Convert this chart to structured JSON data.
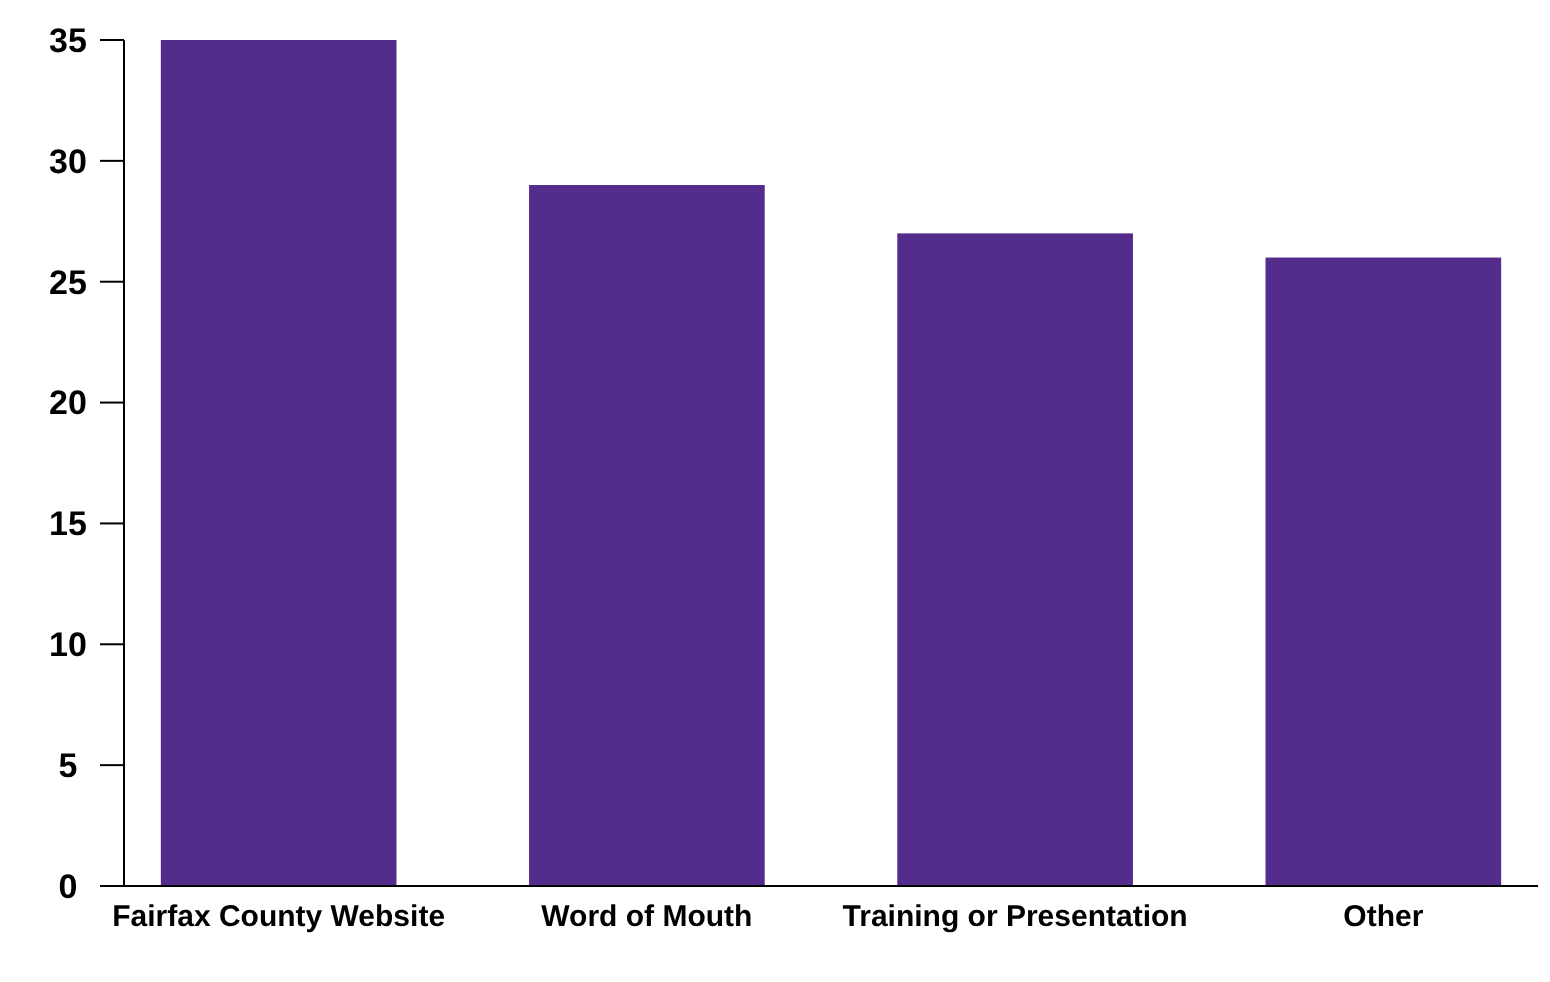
{
  "chart_data": {
    "type": "bar",
    "categories": [
      "Fairfax County Website",
      "Word of Mouth",
      "Training or Presentation",
      "Other"
    ],
    "values": [
      35,
      29,
      27,
      26
    ],
    "color": "#542d8c",
    "ylim": [
      0,
      35
    ],
    "yticks": [
      0,
      5,
      10,
      15,
      20,
      25,
      30,
      35
    ],
    "grid": false
  }
}
